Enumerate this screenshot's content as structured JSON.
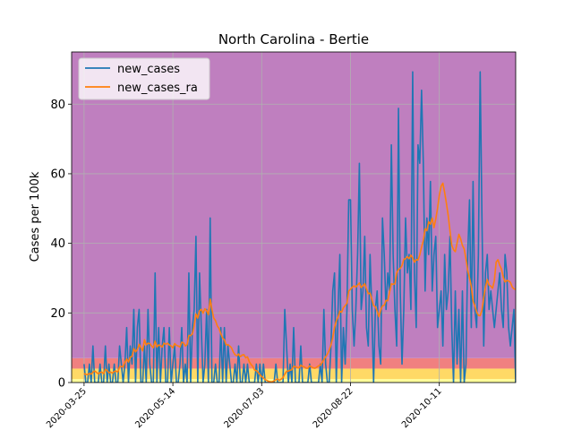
{
  "chart_data": {
    "type": "line",
    "title": "North Carolina - Bertie",
    "xlabel": "",
    "ylabel": "Cases per 100k",
    "x_start": "2020-03-25",
    "x_ticks": [
      "2020-03-25",
      "2020-05-14",
      "2020-07-03",
      "2020-08-22",
      "2020-10-11"
    ],
    "xlim": [
      "2020-03-18",
      "2020-11-23"
    ],
    "ylim": [
      0,
      95
    ],
    "y_ticks": [
      0,
      20,
      40,
      60,
      80
    ],
    "grid": true,
    "legend_position": "top-left",
    "background_bands": [
      {
        "from": 0,
        "to": 1,
        "color": "#ffff99"
      },
      {
        "from": 1,
        "to": 4,
        "color": "#ffd966"
      },
      {
        "from": 4,
        "to": 7,
        "color": "#f08080"
      },
      {
        "from": 7,
        "to": 95,
        "color": "#bf7fbf"
      }
    ],
    "series": [
      {
        "name": "new_cases",
        "color": "#1f77b4",
        "values": [
          5.3,
          0,
          0,
          5.3,
          0,
          10.5,
          0,
          0,
          0,
          5.3,
          0,
          0,
          10.5,
          0,
          5.3,
          0,
          0,
          5.3,
          0,
          0,
          10.5,
          5.3,
          0,
          5.3,
          15.8,
          0,
          10.5,
          5.3,
          21,
          0,
          15.8,
          21,
          0,
          0,
          10.5,
          0,
          21,
          5.3,
          0,
          0,
          31.5,
          0,
          15.8,
          0,
          10.5,
          15.8,
          0,
          0,
          15.8,
          0,
          5.3,
          10.5,
          0,
          0,
          5.3,
          15.8,
          0,
          5.3,
          0,
          31.5,
          0,
          15.8,
          21,
          42,
          0,
          31.5,
          15.8,
          0,
          5.3,
          21,
          0,
          47.3,
          0,
          0,
          5.3,
          0,
          0,
          15.8,
          0,
          15.8,
          0,
          10.5,
          5.3,
          0,
          0,
          5.3,
          0,
          10.5,
          0,
          0,
          5.3,
          0,
          5.3,
          0,
          0,
          0,
          0,
          5.3,
          0,
          5.3,
          0,
          5.3,
          0,
          0,
          0,
          0,
          0,
          0,
          5.3,
          0,
          0,
          0,
          0,
          21,
          10.5,
          0,
          5.3,
          0,
          15.8,
          0,
          0,
          0,
          10.5,
          0,
          0,
          0,
          0,
          5.3,
          0,
          0,
          0,
          0,
          0,
          5.3,
          0,
          21,
          5.3,
          0,
          0,
          10.5,
          26.3,
          31.5,
          0,
          21,
          36.8,
          0,
          15.8,
          5.3,
          21,
          52.5,
          52.5,
          21,
          10.5,
          21,
          36.8,
          63,
          21,
          26.3,
          42,
          15.8,
          10.5,
          36.8,
          21,
          0,
          21,
          26.3,
          10.5,
          5.3,
          47.3,
          36.8,
          21,
          31.5,
          26.3,
          68.3,
          36.8,
          21,
          10.5,
          78.8,
          26.3,
          5.3,
          21,
          47.3,
          31.5,
          36.8,
          21,
          89.3,
          31.5,
          15.8,
          68.3,
          63,
          84,
          63,
          26.3,
          47.3,
          36.8,
          57.8,
          26.3,
          36.8,
          42,
          15.8,
          21,
          26.3,
          10.5,
          36.8,
          21,
          26.3,
          42,
          15.8,
          0,
          26.3,
          5.3,
          21,
          0,
          26.3,
          0,
          5.3,
          36.8,
          52.5,
          15.8,
          57.8,
          21,
          15.8,
          36.8,
          89.3,
          47.3,
          10.5,
          31.5,
          36.8,
          21,
          26.3,
          21,
          15.8,
          21,
          26.3,
          31.5,
          21,
          15.8,
          36.8,
          31.5,
          15.8,
          10.5,
          15.8,
          21,
          0,
          57.8,
          26.3,
          10.5,
          42,
          21,
          31.5,
          15.8,
          21,
          0,
          10.5,
          15.8,
          10.5,
          0,
          26.3,
          0,
          21,
          15.8,
          10.5,
          0,
          21,
          10.5,
          15.8,
          5.3,
          31.5,
          5.3,
          15.8,
          10.5,
          31.5,
          15.8,
          5.3,
          21,
          57.8
        ],
        "note_x": "daily from 2020-03-25"
      },
      {
        "name": "new_cases_ra",
        "color": "#ff7f0e",
        "values": [
          2.6,
          2.3,
          2.3,
          2.6,
          2.4,
          3,
          3.3,
          2.9,
          2.5,
          2.9,
          3,
          2.5,
          3.8,
          3.5,
          2.8,
          3,
          2.7,
          3.2,
          3.3,
          3,
          4.5,
          4.6,
          4.5,
          5.8,
          6.8,
          5.9,
          7.3,
          7.5,
          9.8,
          8.8,
          9.5,
          11,
          10,
          9.1,
          12.3,
          10.8,
          11.3,
          11.2,
          10.5,
          10,
          11.9,
          10.2,
          10.8,
          10.6,
          10.2,
          11.3,
          11,
          11.3,
          10.8,
          10.5,
          10,
          11.2,
          10.7,
          10.5,
          10.2,
          11.6,
          11.4,
          10.5,
          10.9,
          13.5,
          13.5,
          14,
          16.3,
          19.7,
          18.5,
          20.6,
          21,
          19.9,
          21.2,
          20.6,
          19.5,
          24,
          21,
          18.5,
          17.8,
          16.3,
          15.5,
          14,
          12.8,
          12.3,
          10.8,
          10.9,
          10.5,
          10,
          8.8,
          8,
          7.7,
          8.2,
          7.4,
          7.9,
          8,
          7.1,
          7.4,
          6,
          5.2,
          4.6,
          3.6,
          3.4,
          2.9,
          2.3,
          1.7,
          1.3,
          0.8,
          0.6,
          0.3,
          0.2,
          0.2,
          0.5,
          0.8,
          1,
          0.6,
          1,
          1.4,
          2.4,
          3.2,
          3.3,
          3.5,
          3.7,
          4.7,
          4.5,
          4.3,
          4.2,
          5,
          4.6,
          4.5,
          4.1,
          4.1,
          4.8,
          4.5,
          4.2,
          4.1,
          4.4,
          4.8,
          5,
          5.7,
          6.6,
          7.4,
          8.2,
          9.3,
          10.8,
          12.9,
          15.8,
          17.7,
          18.8,
          20.5,
          20.2,
          21.5,
          22.1,
          22.8,
          26.3,
          26.8,
          27.4,
          27.8,
          27.4,
          28,
          28.6,
          27.3,
          27.8,
          28.4,
          26.9,
          25.5,
          25.7,
          24,
          22.1,
          21.8,
          20.5,
          18.9,
          20.8,
          22,
          22.2,
          23.6,
          23.5,
          26,
          28.4,
          28.2,
          28.4,
          31.5,
          32.5,
          32.8,
          33.6,
          35.4,
          35.6,
          36.2,
          35.6,
          36.6,
          35.8,
          34.6,
          35.3,
          35.2,
          36.7,
          38.9,
          40.8,
          44.2,
          43.6,
          46.2,
          45.5,
          47.3,
          44.5,
          47,
          50,
          53.8,
          56.4,
          57.3,
          54.6,
          51.5,
          48,
          43.6,
          39.4,
          38.2,
          37.6,
          40.1,
          42.6,
          41.3,
          39.4,
          38.4,
          35.5,
          32.2,
          30,
          27.6,
          23.4,
          22,
          20.3,
          19.3,
          19.2,
          20.8,
          24.4,
          27.5,
          29.6,
          28,
          27.7,
          27.1,
          29.4,
          34.6,
          35.3,
          33.7,
          32.6,
          30.3,
          28.9,
          29.3,
          29.2,
          28.8,
          27.5,
          26.9,
          26.8,
          25.4,
          23.5,
          23.3,
          24,
          25.1,
          24.5,
          23.7,
          25.6,
          26.6,
          27.8,
          26.9,
          25.5,
          27.9,
          29.5,
          32.5,
          33.3,
          31.1,
          29,
          26.7,
          24.7,
          23.4,
          22.3,
          20.6,
          18,
          15.5,
          14,
          12.7,
          12.1,
          11.3,
          11.9,
          12.6,
          12.3,
          13.2,
          11.2,
          10.3,
          10.8,
          12.4,
          12.5,
          12.7,
          14.5,
          15.4,
          13.3,
          12.9,
          13.6,
          19.3
        ]
      }
    ]
  }
}
